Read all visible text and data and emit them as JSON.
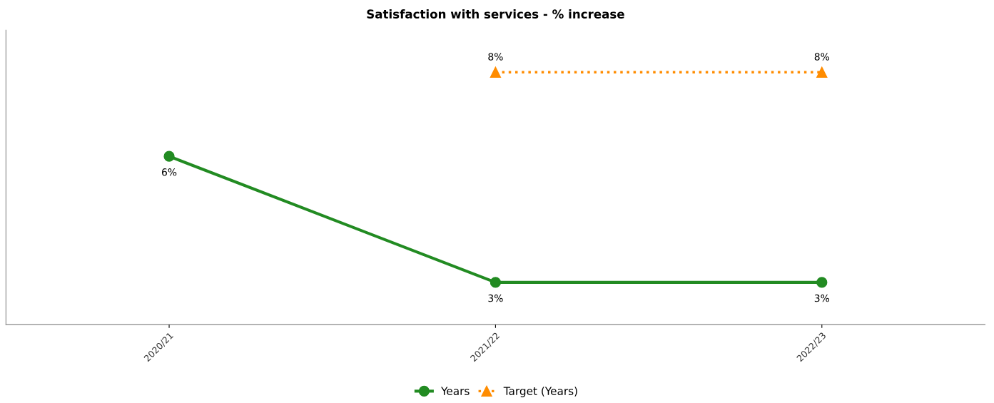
{
  "chart_data": {
    "type": "line",
    "title": "Satisfaction with services - % increase",
    "categories": [
      "2020/21",
      "2021/22",
      "2022/23"
    ],
    "series": [
      {
        "name": "Years",
        "color": "#228b22",
        "values": [
          6,
          3,
          3
        ],
        "value_labels": [
          "6%",
          "3%",
          "3%"
        ],
        "marker": "circle",
        "line_style": "solid"
      },
      {
        "name": "Target (Years)",
        "color": "#ff8c00",
        "values": [
          null,
          8,
          8
        ],
        "value_labels": [
          null,
          "8%",
          "8%"
        ],
        "marker": "triangle",
        "line_style": "dotted"
      }
    ],
    "grid": false,
    "legend": "bottom",
    "tick_labels": "x"
  }
}
